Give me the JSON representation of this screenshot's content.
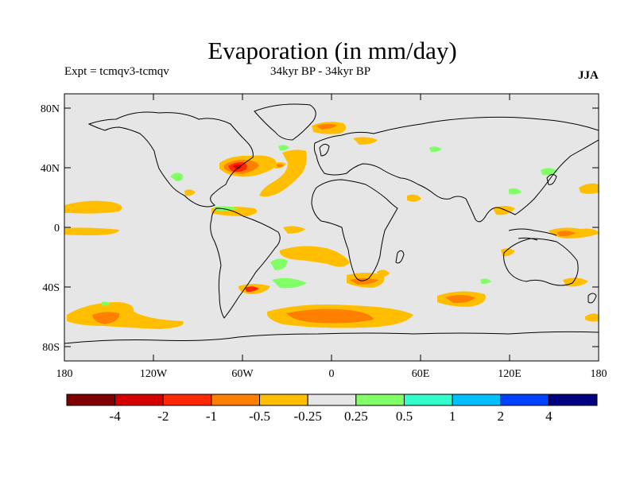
{
  "title": "Evaporation (in mm/day)",
  "experiment": "Expt = tcmqv3-tcmqv",
  "period": "34kyr BP - 34kyr BP",
  "season": "JJA",
  "lat_ticks": [
    "80N",
    "40N",
    "0",
    "40S",
    "80S"
  ],
  "lon_ticks": [
    "180",
    "120W",
    "60W",
    "0",
    "60E",
    "120E",
    "180"
  ],
  "colorbar": {
    "labels": [
      "-4",
      "-2",
      "-1",
      "-0.5",
      "-0.25",
      "0.25",
      "0.5",
      "1",
      "2",
      "4"
    ],
    "colors": [
      "#7f0000",
      "#d40000",
      "#ff2800",
      "#ff8000",
      "#ffbf00",
      "#e6e6e6",
      "#80ff66",
      "#33ffcc",
      "#00bfff",
      "#0040ff",
      "#000080"
    ]
  },
  "colors": {
    "land_ocean_background": "#e6e6e6",
    "coastline": "#000000"
  }
}
